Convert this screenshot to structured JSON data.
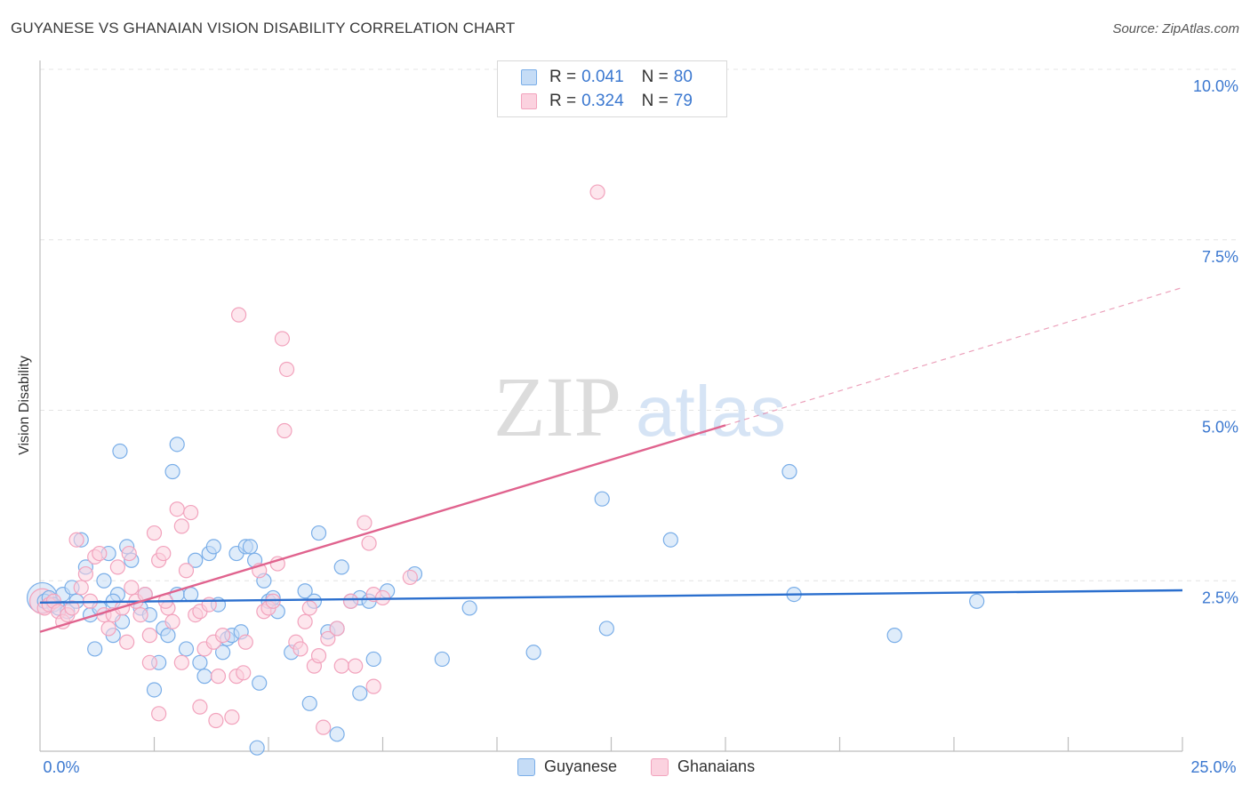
{
  "header": {
    "title": "GUYANESE VS GHANAIAN VISION DISABILITY CORRELATION CHART",
    "source": "Source: ZipAtlas.com"
  },
  "watermark": {
    "zip": "ZIP",
    "atlas": "atlas"
  },
  "legend": {
    "rows": [
      {
        "r_label": "R = ",
        "r_value": "0.041",
        "n_label": "N = ",
        "n_value": "80",
        "color": "#7aaee8"
      },
      {
        "r_label": "R = ",
        "r_value": "0.324",
        "n_label": "N = ",
        "n_value": "79",
        "color": "#f2a3bd"
      }
    ]
  },
  "bottom_legend": [
    {
      "label": "Guyanese",
      "color": "#7aaee8"
    },
    {
      "label": "Ghanaians",
      "color": "#f2a3bd"
    }
  ],
  "chart_data": {
    "type": "scatter",
    "title": "GUYANESE VS GHANAIAN VISION DISABILITY CORRELATION CHART",
    "ylabel": "Vision Disability",
    "xlabel": "",
    "xlim": [
      0,
      25
    ],
    "ylim": [
      0,
      10
    ],
    "x_tick_labels": [
      "0.0%",
      "25.0%"
    ],
    "y_tick_labels": [
      "10.0%",
      "7.5%",
      "5.0%",
      "2.5%"
    ],
    "y_ticks": [
      10,
      7.5,
      5,
      2.5
    ],
    "grid": true,
    "legend_position": "top-center",
    "series": [
      {
        "name": "Guyanese",
        "color": "#7aaee8",
        "line_color": "#2b6fce",
        "trend": {
          "x": [
            0,
            25
          ],
          "y": [
            2.18,
            2.36
          ]
        },
        "points": [
          [
            0.1,
            2.2
          ],
          [
            0.2,
            2.25
          ],
          [
            0.3,
            2.15
          ],
          [
            0.4,
            2.1
          ],
          [
            0.5,
            2.3
          ],
          [
            0.6,
            2.05
          ],
          [
            0.7,
            2.4
          ],
          [
            0.8,
            2.2
          ],
          [
            0.9,
            3.1
          ],
          [
            1.0,
            2.7
          ],
          [
            1.1,
            2.0
          ],
          [
            1.2,
            1.5
          ],
          [
            1.3,
            2.1
          ],
          [
            1.4,
            2.5
          ],
          [
            1.5,
            2.9
          ],
          [
            1.6,
            1.7
          ],
          [
            1.7,
            2.3
          ],
          [
            1.8,
            1.9
          ],
          [
            1.6,
            2.2
          ],
          [
            1.9,
            3.0
          ],
          [
            2.0,
            2.8
          ],
          [
            2.2,
            2.1
          ],
          [
            2.3,
            2.3
          ],
          [
            1.75,
            4.4
          ],
          [
            2.4,
            2.0
          ],
          [
            2.6,
            1.3
          ],
          [
            2.7,
            1.8
          ],
          [
            2.8,
            1.7
          ],
          [
            2.5,
            0.9
          ],
          [
            2.9,
            4.1
          ],
          [
            3.0,
            2.3
          ],
          [
            3.0,
            4.5
          ],
          [
            3.2,
            1.5
          ],
          [
            3.3,
            2.3
          ],
          [
            3.4,
            2.8
          ],
          [
            3.5,
            1.3
          ],
          [
            3.6,
            1.1
          ],
          [
            3.7,
            2.9
          ],
          [
            3.8,
            3.0
          ],
          [
            3.9,
            2.15
          ],
          [
            4.0,
            1.45
          ],
          [
            4.1,
            1.65
          ],
          [
            4.2,
            1.7
          ],
          [
            4.3,
            2.9
          ],
          [
            4.4,
            1.75
          ],
          [
            4.5,
            3.0
          ],
          [
            4.6,
            3.0
          ],
          [
            4.7,
            2.8
          ],
          [
            4.8,
            1.0
          ],
          [
            4.9,
            2.5
          ],
          [
            5.0,
            2.2
          ],
          [
            5.1,
            2.25
          ],
          [
            5.2,
            2.05
          ],
          [
            4.75,
            0.05
          ],
          [
            5.5,
            1.45
          ],
          [
            5.8,
            2.35
          ],
          [
            6.0,
            2.2
          ],
          [
            5.9,
            0.7
          ],
          [
            6.1,
            3.2
          ],
          [
            6.3,
            1.75
          ],
          [
            6.5,
            1.8
          ],
          [
            6.6,
            2.7
          ],
          [
            6.5,
            0.25
          ],
          [
            6.8,
            2.2
          ],
          [
            7.0,
            2.25
          ],
          [
            7.2,
            2.2
          ],
          [
            7.3,
            1.35
          ],
          [
            7.6,
            2.35
          ],
          [
            8.2,
            2.6
          ],
          [
            7.0,
            0.85
          ],
          [
            8.8,
            1.35
          ],
          [
            9.4,
            2.1
          ],
          [
            10.8,
            1.45
          ],
          [
            12.3,
            3.7
          ],
          [
            12.4,
            1.8
          ],
          [
            13.8,
            3.1
          ],
          [
            16.4,
            4.1
          ],
          [
            16.5,
            2.3
          ],
          [
            18.7,
            1.7
          ],
          [
            20.5,
            2.2
          ]
        ]
      },
      {
        "name": "Ghanaians",
        "color": "#f2a3bd",
        "line_color": "#e0638e",
        "trend": {
          "x": [
            0,
            15
          ],
          "y": [
            1.75,
            4.78
          ]
        },
        "trend_dashed": {
          "x": [
            15,
            25
          ],
          "y": [
            4.78,
            6.8
          ]
        },
        "points": [
          [
            0.1,
            2.1
          ],
          [
            0.2,
            2.15
          ],
          [
            0.3,
            2.2
          ],
          [
            0.4,
            2.05
          ],
          [
            0.5,
            1.9
          ],
          [
            0.6,
            2.0
          ],
          [
            0.7,
            2.1
          ],
          [
            0.8,
            3.1
          ],
          [
            0.9,
            2.4
          ],
          [
            1.0,
            2.6
          ],
          [
            1.1,
            2.2
          ],
          [
            1.2,
            2.85
          ],
          [
            1.3,
            2.9
          ],
          [
            1.4,
            2.0
          ],
          [
            1.5,
            1.8
          ],
          [
            1.6,
            2.0
          ],
          [
            1.7,
            2.7
          ],
          [
            1.8,
            2.1
          ],
          [
            1.9,
            1.6
          ],
          [
            2.0,
            2.4
          ],
          [
            2.1,
            2.2
          ],
          [
            1.95,
            2.9
          ],
          [
            2.2,
            2.0
          ],
          [
            2.3,
            2.3
          ],
          [
            2.4,
            1.7
          ],
          [
            2.4,
            1.3
          ],
          [
            2.5,
            3.2
          ],
          [
            2.6,
            2.8
          ],
          [
            2.6,
            0.55
          ],
          [
            2.7,
            2.9
          ],
          [
            2.8,
            2.1
          ],
          [
            2.9,
            1.9
          ],
          [
            3.0,
            3.55
          ],
          [
            3.1,
            3.3
          ],
          [
            3.2,
            2.65
          ],
          [
            3.1,
            1.3
          ],
          [
            3.3,
            3.5
          ],
          [
            3.4,
            2.0
          ],
          [
            3.5,
            2.05
          ],
          [
            3.6,
            1.5
          ],
          [
            3.5,
            0.65
          ],
          [
            3.8,
            1.6
          ],
          [
            3.9,
            1.1
          ],
          [
            4.0,
            1.7
          ],
          [
            3.85,
            0.45
          ],
          [
            4.2,
            0.5
          ],
          [
            4.3,
            1.1
          ],
          [
            4.45,
            1.15
          ],
          [
            4.5,
            1.6
          ],
          [
            4.35,
            6.4
          ],
          [
            4.8,
            2.65
          ],
          [
            4.9,
            2.05
          ],
          [
            5.0,
            2.1
          ],
          [
            5.1,
            2.2
          ],
          [
            5.2,
            2.75
          ],
          [
            5.3,
            6.05
          ],
          [
            5.4,
            5.6
          ],
          [
            5.35,
            4.7
          ],
          [
            5.6,
            1.6
          ],
          [
            5.7,
            1.5
          ],
          [
            5.8,
            1.9
          ],
          [
            6.0,
            1.25
          ],
          [
            6.1,
            1.4
          ],
          [
            6.2,
            0.35
          ],
          [
            6.3,
            1.65
          ],
          [
            6.5,
            1.8
          ],
          [
            6.6,
            1.25
          ],
          [
            6.9,
            1.25
          ],
          [
            7.1,
            3.35
          ],
          [
            7.2,
            3.05
          ],
          [
            7.3,
            2.3
          ],
          [
            7.5,
            2.25
          ],
          [
            7.3,
            0.95
          ],
          [
            8.1,
            2.55
          ],
          [
            6.8,
            2.2
          ],
          [
            5.9,
            2.1
          ],
          [
            2.75,
            2.2
          ],
          [
            3.7,
            2.15
          ],
          [
            12.2,
            8.2
          ]
        ]
      }
    ]
  }
}
